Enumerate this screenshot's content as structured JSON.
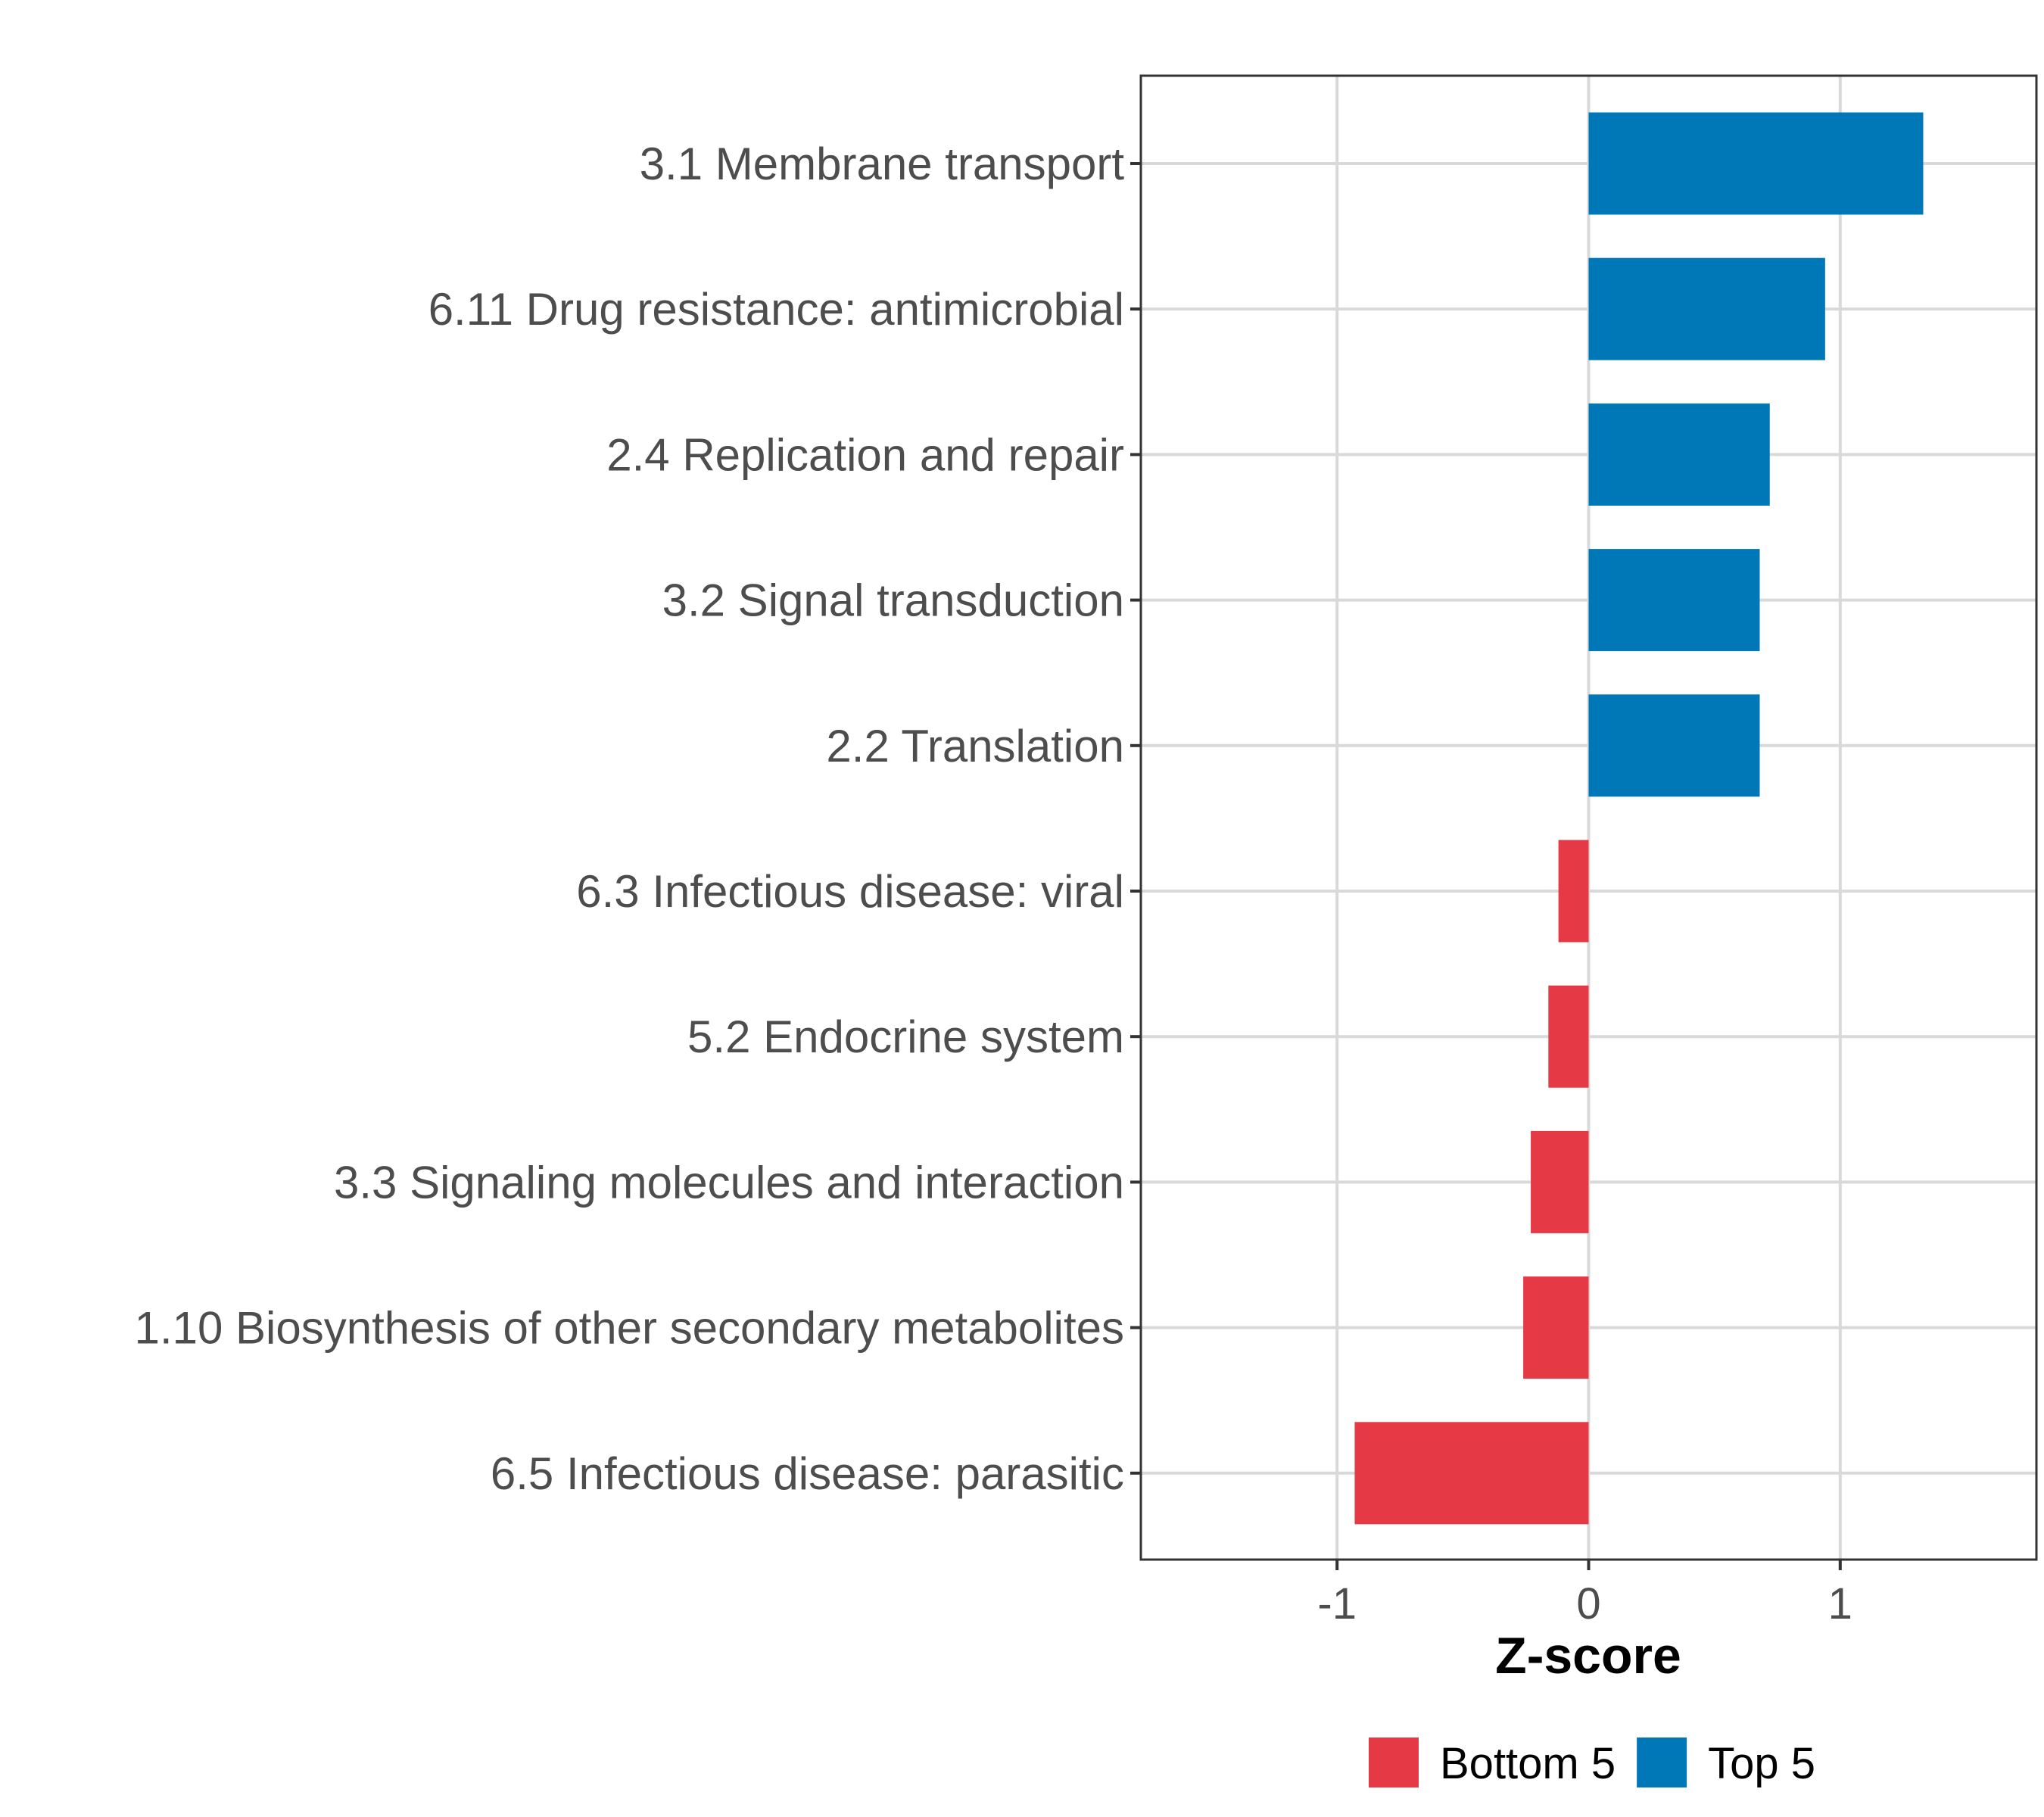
{
  "chart_data": {
    "type": "bar",
    "orientation": "horizontal",
    "title": "",
    "xlabel": "Z-score",
    "ylabel": "",
    "xlim": [
      -1.78,
      1.78
    ],
    "xticks": [
      -1,
      0,
      1
    ],
    "xtick_labels": [
      "-1",
      "0",
      "1"
    ],
    "grid": true,
    "legend_position": "bottom",
    "categories": [
      "3.1 Membrane transport",
      "6.11 Drug resistance: antimicrobial",
      "2.4 Replication and repair",
      "3.2 Signal transduction",
      "2.2 Translation",
      "6.3 Infectious disease: viral",
      "5.2 Endocrine system",
      "3.3 Signaling molecules and interaction",
      "1.10 Biosynthesis of other secondary metabolites",
      "6.5 Infectious disease: parasitic"
    ],
    "values": [
      1.33,
      0.94,
      0.72,
      0.68,
      0.68,
      -0.12,
      -0.16,
      -0.23,
      -0.26,
      -0.93
    ],
    "groups": [
      "Top 5",
      "Top 5",
      "Top 5",
      "Top 5",
      "Top 5",
      "Bottom 5",
      "Bottom 5",
      "Bottom 5",
      "Bottom 5",
      "Bottom 5"
    ],
    "legend": [
      {
        "name": "Bottom 5",
        "color": "#e63946"
      },
      {
        "name": "Top 5",
        "color": "#0077b6"
      }
    ]
  }
}
